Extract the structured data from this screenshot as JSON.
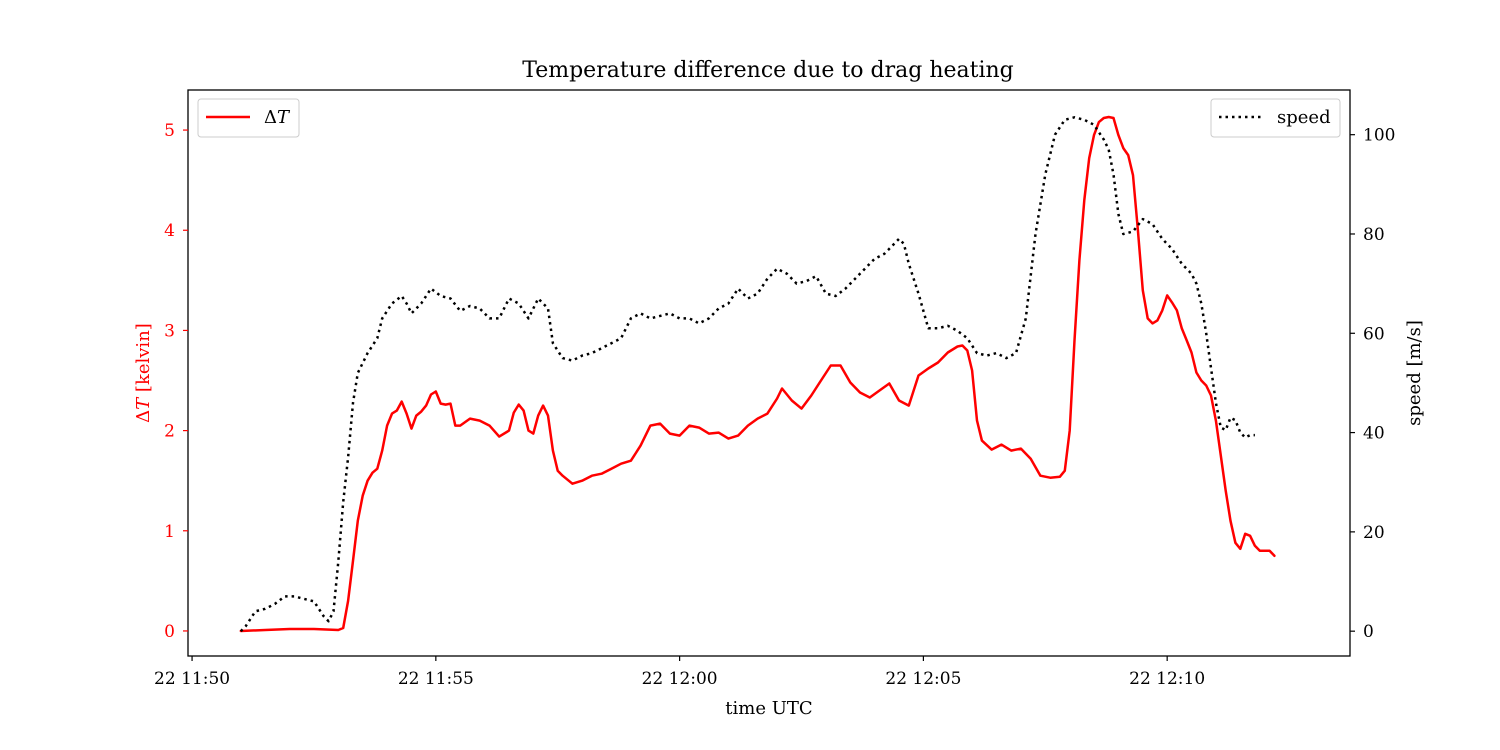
{
  "chart_data": {
    "type": "line",
    "title": "Temperature difference due to drag heating",
    "xlabel": "time UTC",
    "x_range": [
      "11:49:55",
      "12:13:45"
    ],
    "x_ticks": [
      {
        "time": "11:50:00",
        "label": "22 11:50"
      },
      {
        "time": "11:55:00",
        "label": "22 11:55"
      },
      {
        "time": "12:00:00",
        "label": "22 12:00"
      },
      {
        "time": "12:05:00",
        "label": "22 12:05"
      },
      {
        "time": "12:10:00",
        "label": "22 12:10"
      }
    ],
    "y_left": {
      "label_prefix": "Δ",
      "label_var": "T",
      "label_suffix": " [kelvin]",
      "color": "#ff0000",
      "ylim": [
        -0.25,
        5.4
      ],
      "ticks": [
        0,
        1,
        2,
        3,
        4,
        5
      ]
    },
    "y_right": {
      "label": "speed [m/s]",
      "color": "#000000",
      "ylim": [
        -5,
        109
      ],
      "ticks": [
        0,
        20,
        40,
        60,
        80,
        100
      ]
    },
    "grid": false,
    "series": [
      {
        "name": "ΔT",
        "name_prefix": "Δ",
        "name_var": "T",
        "axis": "left",
        "color": "#ff0000",
        "style": "solid",
        "legend_position": "upper-left",
        "points": [
          [
            "11:51:00",
            0.0
          ],
          [
            "11:51:30",
            0.01
          ],
          [
            "11:52:00",
            0.02
          ],
          [
            "11:52:30",
            0.02
          ],
          [
            "11:53:00",
            0.01
          ],
          [
            "11:53:06",
            0.03
          ],
          [
            "11:53:12",
            0.3
          ],
          [
            "11:53:18",
            0.7
          ],
          [
            "11:53:24",
            1.1
          ],
          [
            "11:53:30",
            1.35
          ],
          [
            "11:53:36",
            1.5
          ],
          [
            "11:53:42",
            1.58
          ],
          [
            "11:53:48",
            1.62
          ],
          [
            "11:53:54",
            1.8
          ],
          [
            "11:54:00",
            2.05
          ],
          [
            "11:54:06",
            2.17
          ],
          [
            "11:54:12",
            2.2
          ],
          [
            "11:54:18",
            2.29
          ],
          [
            "11:54:24",
            2.17
          ],
          [
            "11:54:30",
            2.02
          ],
          [
            "11:54:36",
            2.15
          ],
          [
            "11:54:42",
            2.19
          ],
          [
            "11:54:48",
            2.25
          ],
          [
            "11:54:54",
            2.36
          ],
          [
            "11:55:00",
            2.39
          ],
          [
            "11:55:06",
            2.27
          ],
          [
            "11:55:12",
            2.26
          ],
          [
            "11:55:18",
            2.27
          ],
          [
            "11:55:24",
            2.05
          ],
          [
            "11:55:30",
            2.05
          ],
          [
            "11:55:42",
            2.12
          ],
          [
            "11:55:54",
            2.1
          ],
          [
            "11:56:06",
            2.05
          ],
          [
            "11:56:18",
            1.94
          ],
          [
            "11:56:30",
            2.0
          ],
          [
            "11:56:36",
            2.18
          ],
          [
            "11:56:42",
            2.26
          ],
          [
            "11:56:48",
            2.2
          ],
          [
            "11:56:54",
            2.0
          ],
          [
            "11:57:00",
            1.97
          ],
          [
            "11:57:06",
            2.15
          ],
          [
            "11:57:12",
            2.25
          ],
          [
            "11:57:18",
            2.15
          ],
          [
            "11:57:24",
            1.8
          ],
          [
            "11:57:30",
            1.6
          ],
          [
            "11:57:36",
            1.55
          ],
          [
            "11:57:48",
            1.47
          ],
          [
            "11:58:00",
            1.5
          ],
          [
            "11:58:12",
            1.55
          ],
          [
            "11:58:24",
            1.57
          ],
          [
            "11:58:36",
            1.62
          ],
          [
            "11:58:48",
            1.67
          ],
          [
            "11:59:00",
            1.7
          ],
          [
            "11:59:12",
            1.85
          ],
          [
            "11:59:24",
            2.05
          ],
          [
            "11:59:36",
            2.07
          ],
          [
            "11:59:48",
            1.97
          ],
          [
            "12:00:00",
            1.95
          ],
          [
            "12:00:12",
            2.05
          ],
          [
            "12:00:24",
            2.03
          ],
          [
            "12:00:36",
            1.97
          ],
          [
            "12:00:48",
            1.98
          ],
          [
            "12:01:00",
            1.92
          ],
          [
            "12:01:12",
            1.95
          ],
          [
            "12:01:24",
            2.05
          ],
          [
            "12:01:36",
            2.12
          ],
          [
            "12:01:48",
            2.17
          ],
          [
            "12:02:00",
            2.32
          ],
          [
            "12:02:06",
            2.42
          ],
          [
            "12:02:18",
            2.3
          ],
          [
            "12:02:30",
            2.22
          ],
          [
            "12:02:42",
            2.35
          ],
          [
            "12:02:54",
            2.5
          ],
          [
            "12:03:06",
            2.65
          ],
          [
            "12:03:18",
            2.65
          ],
          [
            "12:03:30",
            2.48
          ],
          [
            "12:03:42",
            2.38
          ],
          [
            "12:03:54",
            2.33
          ],
          [
            "12:04:06",
            2.4
          ],
          [
            "12:04:18",
            2.47
          ],
          [
            "12:04:30",
            2.3
          ],
          [
            "12:04:42",
            2.25
          ],
          [
            "12:04:54",
            2.55
          ],
          [
            "12:05:06",
            2.62
          ],
          [
            "12:05:18",
            2.68
          ],
          [
            "12:05:30",
            2.78
          ],
          [
            "12:05:42",
            2.84
          ],
          [
            "12:05:48",
            2.85
          ],
          [
            "12:05:54",
            2.8
          ],
          [
            "12:06:00",
            2.6
          ],
          [
            "12:06:06",
            2.1
          ],
          [
            "12:06:12",
            1.9
          ],
          [
            "12:06:24",
            1.81
          ],
          [
            "12:06:36",
            1.86
          ],
          [
            "12:06:48",
            1.8
          ],
          [
            "12:07:00",
            1.82
          ],
          [
            "12:07:12",
            1.72
          ],
          [
            "12:07:24",
            1.55
          ],
          [
            "12:07:36",
            1.53
          ],
          [
            "12:07:48",
            1.54
          ],
          [
            "12:07:54",
            1.6
          ],
          [
            "12:08:00",
            2.0
          ],
          [
            "12:08:06",
            2.9
          ],
          [
            "12:08:12",
            3.7
          ],
          [
            "12:08:18",
            4.3
          ],
          [
            "12:08:24",
            4.72
          ],
          [
            "12:08:30",
            4.95
          ],
          [
            "12:08:36",
            5.08
          ],
          [
            "12:08:42",
            5.12
          ],
          [
            "12:08:48",
            5.13
          ],
          [
            "12:08:54",
            5.12
          ],
          [
            "12:09:00",
            4.95
          ],
          [
            "12:09:06",
            4.82
          ],
          [
            "12:09:12",
            4.75
          ],
          [
            "12:09:18",
            4.55
          ],
          [
            "12:09:24",
            4.0
          ],
          [
            "12:09:30",
            3.4
          ],
          [
            "12:09:36",
            3.12
          ],
          [
            "12:09:42",
            3.07
          ],
          [
            "12:09:48",
            3.1
          ],
          [
            "12:09:54",
            3.2
          ],
          [
            "12:10:00",
            3.35
          ],
          [
            "12:10:06",
            3.28
          ],
          [
            "12:10:12",
            3.2
          ],
          [
            "12:10:18",
            3.02
          ],
          [
            "12:10:24",
            2.9
          ],
          [
            "12:10:30",
            2.78
          ],
          [
            "12:10:36",
            2.58
          ],
          [
            "12:10:42",
            2.5
          ],
          [
            "12:10:48",
            2.45
          ],
          [
            "12:10:54",
            2.35
          ],
          [
            "12:11:00",
            2.1
          ],
          [
            "12:11:06",
            1.75
          ],
          [
            "12:11:12",
            1.4
          ],
          [
            "12:11:18",
            1.1
          ],
          [
            "12:11:24",
            0.88
          ],
          [
            "12:11:30",
            0.82
          ],
          [
            "12:11:36",
            0.97
          ],
          [
            "12:11:42",
            0.95
          ],
          [
            "12:11:48",
            0.85
          ],
          [
            "12:11:54",
            0.8
          ],
          [
            "12:12:06",
            0.8
          ],
          [
            "12:12:12",
            0.75
          ]
        ]
      },
      {
        "name": "speed",
        "axis": "right",
        "color": "#000000",
        "style": "dotted",
        "legend_position": "upper-right",
        "points": [
          [
            "11:51:00",
            0.0
          ],
          [
            "11:51:06",
            1.0
          ],
          [
            "11:51:18",
            4.0
          ],
          [
            "11:51:30",
            4.5
          ],
          [
            "11:51:42",
            5.5
          ],
          [
            "11:51:54",
            7.0
          ],
          [
            "11:52:06",
            7.0
          ],
          [
            "11:52:18",
            6.5
          ],
          [
            "11:52:30",
            6.0
          ],
          [
            "11:52:42",
            3.0
          ],
          [
            "11:52:48",
            2.0
          ],
          [
            "11:52:54",
            4.0
          ],
          [
            "11:53:00",
            14.0
          ],
          [
            "11:53:06",
            26.0
          ],
          [
            "11:53:12",
            35.0
          ],
          [
            "11:53:18",
            46.0
          ],
          [
            "11:53:24",
            52.0
          ],
          [
            "11:53:36",
            56.0
          ],
          [
            "11:53:48",
            59.0
          ],
          [
            "11:53:54",
            63.0
          ],
          [
            "11:54:06",
            66.0
          ],
          [
            "11:54:18",
            67.5
          ],
          [
            "11:54:24",
            66.0
          ],
          [
            "11:54:30",
            64.0
          ],
          [
            "11:54:42",
            66.0
          ],
          [
            "11:54:54",
            69.0
          ],
          [
            "11:55:06",
            67.5
          ],
          [
            "11:55:18",
            67.0
          ],
          [
            "11:55:30",
            64.5
          ],
          [
            "11:55:42",
            65.5
          ],
          [
            "11:55:54",
            65.0
          ],
          [
            "11:56:06",
            63.0
          ],
          [
            "11:56:18",
            63.0
          ],
          [
            "11:56:30",
            67.0
          ],
          [
            "11:56:42",
            66.0
          ],
          [
            "11:56:54",
            63.0
          ],
          [
            "11:57:06",
            67.0
          ],
          [
            "11:57:18",
            65.0
          ],
          [
            "11:57:24",
            58.0
          ],
          [
            "11:57:36",
            55.0
          ],
          [
            "11:57:48",
            54.5
          ],
          [
            "11:58:00",
            55.5
          ],
          [
            "11:58:12",
            56.0
          ],
          [
            "11:58:24",
            57.0
          ],
          [
            "11:58:36",
            58.0
          ],
          [
            "11:58:48",
            59.0
          ],
          [
            "11:59:00",
            63.0
          ],
          [
            "11:59:12",
            64.0
          ],
          [
            "11:59:24",
            63.0
          ],
          [
            "11:59:36",
            63.5
          ],
          [
            "11:59:48",
            64.0
          ],
          [
            "12:00:00",
            63.0
          ],
          [
            "12:00:12",
            63.0
          ],
          [
            "12:00:24",
            62.0
          ],
          [
            "12:00:36",
            63.0
          ],
          [
            "12:00:48",
            65.0
          ],
          [
            "12:01:00",
            66.0
          ],
          [
            "12:01:12",
            69.0
          ],
          [
            "12:01:24",
            67.0
          ],
          [
            "12:01:36",
            68.0
          ],
          [
            "12:01:48",
            71.0
          ],
          [
            "12:02:00",
            73.0
          ],
          [
            "12:02:12",
            72.0
          ],
          [
            "12:02:24",
            70.0
          ],
          [
            "12:02:36",
            70.5
          ],
          [
            "12:02:48",
            71.5
          ],
          [
            "12:03:00",
            68.0
          ],
          [
            "12:03:12",
            67.5
          ],
          [
            "12:03:24",
            69.0
          ],
          [
            "12:03:36",
            71.0
          ],
          [
            "12:03:48",
            73.0
          ],
          [
            "12:04:00",
            75.0
          ],
          [
            "12:04:12",
            76.0
          ],
          [
            "12:04:24",
            78.0
          ],
          [
            "12:04:30",
            79.0
          ],
          [
            "12:04:36",
            78.0
          ],
          [
            "12:04:42",
            74.0
          ],
          [
            "12:04:54",
            68.0
          ],
          [
            "12:05:06",
            61.0
          ],
          [
            "12:05:18",
            61.0
          ],
          [
            "12:05:30",
            61.5
          ],
          [
            "12:05:42",
            60.5
          ],
          [
            "12:05:54",
            59.0
          ],
          [
            "12:06:06",
            56.0
          ],
          [
            "12:06:18",
            55.5
          ],
          [
            "12:06:30",
            56.0
          ],
          [
            "12:06:42",
            55.0
          ],
          [
            "12:06:54",
            56.0
          ],
          [
            "12:07:06",
            63.0
          ],
          [
            "12:07:18",
            80.0
          ],
          [
            "12:07:30",
            92.0
          ],
          [
            "12:07:42",
            100.0
          ],
          [
            "12:07:54",
            103.0
          ],
          [
            "12:08:06",
            103.5
          ],
          [
            "12:08:18",
            103.0
          ],
          [
            "12:08:30",
            102.0
          ],
          [
            "12:08:42",
            99.0
          ],
          [
            "12:08:48",
            97.0
          ],
          [
            "12:08:54",
            92.0
          ],
          [
            "12:09:00",
            84.0
          ],
          [
            "12:09:06",
            80.0
          ],
          [
            "12:09:18",
            80.5
          ],
          [
            "12:09:30",
            83.0
          ],
          [
            "12:09:42",
            82.0
          ],
          [
            "12:09:54",
            79.0
          ],
          [
            "12:10:06",
            77.0
          ],
          [
            "12:10:18",
            74.0
          ],
          [
            "12:10:30",
            72.0
          ],
          [
            "12:10:36",
            70.0
          ],
          [
            "12:10:42",
            66.0
          ],
          [
            "12:10:48",
            60.0
          ],
          [
            "12:10:54",
            53.0
          ],
          [
            "12:11:00",
            46.0
          ],
          [
            "12:11:06",
            41.0
          ],
          [
            "12:11:12",
            40.5
          ],
          [
            "12:11:18",
            43.0
          ],
          [
            "12:11:24",
            42.5
          ],
          [
            "12:11:30",
            40.0
          ],
          [
            "12:11:36",
            39.0
          ],
          [
            "12:11:42",
            39.5
          ],
          [
            "12:11:48",
            39.5
          ]
        ]
      }
    ]
  }
}
